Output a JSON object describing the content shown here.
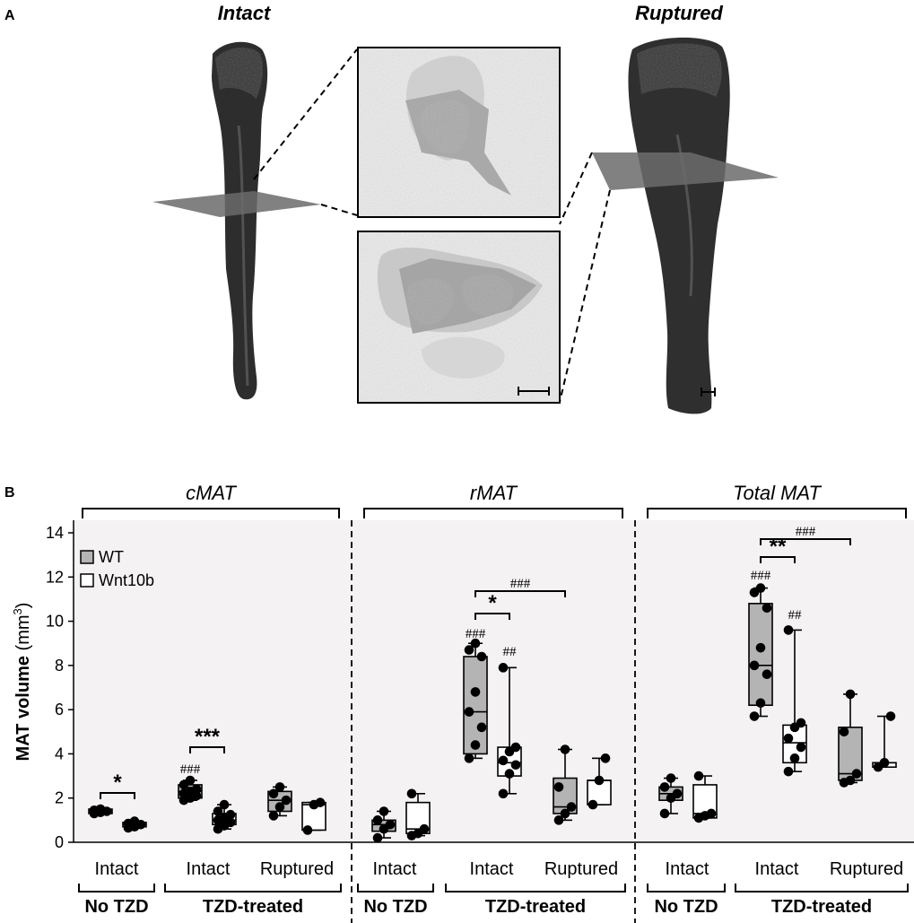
{
  "panel_a": {
    "letter": "A",
    "intact_title": "Intact",
    "ruptured_title": "Ruptured"
  },
  "panel_b": {
    "letter": "B",
    "y_label_bold": "MAT volume",
    "y_label_unit": "(mm",
    "y_label_sup": "3",
    "y_label_close": ")",
    "legend": [
      {
        "label": "WT",
        "fill": "#b4b4b4"
      },
      {
        "label": "Wnt10b",
        "fill": "#ffffff"
      }
    ],
    "sections": [
      {
        "title": "cMAT",
        "cats": [
          "Intact",
          "Intact",
          "Ruptured"
        ],
        "groups": [
          "No TZD",
          "TZD-treated"
        ]
      },
      {
        "title": "rMAT",
        "cats": [
          "Intact",
          "Intact",
          "Ruptured"
        ],
        "groups": [
          "No TZD",
          "TZD-treated"
        ]
      },
      {
        "title": "Total MAT",
        "cats": [
          "Intact",
          "Intact",
          "Ruptured"
        ],
        "groups": [
          "No TZD",
          "TZD-treated"
        ]
      }
    ]
  },
  "chart_data": {
    "type": "box",
    "ylabel": "MAT volume (mm3)",
    "ylim": [
      0,
      14
    ],
    "yticks": [
      0,
      2,
      4,
      6,
      8,
      10,
      12,
      14
    ],
    "series_names": [
      "WT",
      "Wnt10b"
    ],
    "panels": [
      {
        "title": "cMAT",
        "boxes": [
          {
            "cond": "No TZD Intact",
            "series": "WT",
            "min": 1.3,
            "q1": 1.3,
            "median": 1.4,
            "q3": 1.5,
            "max": 1.5,
            "points": [
              1.3,
              1.35,
              1.4,
              1.45,
              1.5
            ]
          },
          {
            "cond": "No TZD Intact",
            "series": "Wnt10b",
            "min": 0.65,
            "q1": 0.7,
            "median": 0.8,
            "q3": 0.9,
            "max": 0.95,
            "points": [
              0.65,
              0.7,
              0.8,
              0.85,
              0.95
            ]
          },
          {
            "cond": "TZD Intact",
            "series": "WT",
            "min": 1.9,
            "q1": 2.0,
            "median": 2.3,
            "q3": 2.6,
            "max": 2.8,
            "points": [
              1.9,
              2.0,
              2.1,
              2.2,
              2.3,
              2.4,
              2.6,
              2.8
            ]
          },
          {
            "cond": "TZD Intact",
            "series": "Wnt10b",
            "min": 0.6,
            "q1": 0.8,
            "median": 1.0,
            "q3": 1.3,
            "max": 1.7,
            "points": [
              0.6,
              0.75,
              0.9,
              1.0,
              1.1,
              1.25,
              1.4,
              1.7
            ]
          },
          {
            "cond": "TZD Ruptured",
            "series": "WT",
            "min": 1.2,
            "q1": 1.4,
            "median": 1.9,
            "q3": 2.3,
            "max": 2.5,
            "points": [
              1.2,
              1.6,
              1.9,
              2.2,
              2.5
            ]
          },
          {
            "cond": "TZD Ruptured",
            "series": "Wnt10b",
            "min": 0.55,
            "q1": 0.55,
            "median": 1.7,
            "q3": 1.8,
            "max": 1.8,
            "points": [
              0.55,
              1.7,
              1.8
            ]
          }
        ],
        "annotations": [
          {
            "text": "*",
            "compare": [
              "No TZD Intact WT",
              "No TZD Intact Wnt10b"
            ]
          },
          {
            "text": "***",
            "compare": [
              "TZD Intact WT",
              "TZD Intact Wnt10b"
            ]
          },
          {
            "text": "###",
            "on": "TZD Intact WT"
          }
        ]
      },
      {
        "title": "rMAT",
        "boxes": [
          {
            "cond": "No TZD Intact",
            "series": "WT",
            "min": 0.2,
            "q1": 0.5,
            "median": 0.8,
            "q3": 1.0,
            "max": 1.4,
            "points": [
              0.2,
              0.6,
              0.8,
              1.0,
              1.4
            ]
          },
          {
            "cond": "No TZD Intact",
            "series": "Wnt10b",
            "min": 0.3,
            "q1": 0.4,
            "median": 0.6,
            "q3": 1.8,
            "max": 2.2,
            "points": [
              0.3,
              0.4,
              0.6,
              2.2
            ]
          },
          {
            "cond": "TZD Intact",
            "series": "WT",
            "min": 3.8,
            "q1": 4.0,
            "median": 5.9,
            "q3": 8.4,
            "max": 9.0,
            "points": [
              3.8,
              4.4,
              5.2,
              5.9,
              6.8,
              8.4,
              8.7,
              9.0
            ]
          },
          {
            "cond": "TZD Intact",
            "series": "Wnt10b",
            "min": 2.2,
            "q1": 3.0,
            "median": 3.6,
            "q3": 4.3,
            "max": 7.9,
            "points": [
              2.2,
              3.1,
              3.5,
              3.7,
              4.1,
              4.3,
              7.9
            ]
          },
          {
            "cond": "TZD Ruptured",
            "series": "WT",
            "min": 1.0,
            "q1": 1.3,
            "median": 1.6,
            "q3": 2.9,
            "max": 4.2,
            "points": [
              1.0,
              1.3,
              1.6,
              2.5,
              4.2
            ]
          },
          {
            "cond": "TZD Ruptured",
            "series": "Wnt10b",
            "min": 1.7,
            "q1": 1.7,
            "median": 2.8,
            "q3": 2.8,
            "max": 3.8,
            "points": [
              1.7,
              2.8,
              3.8
            ]
          }
        ],
        "annotations": [
          {
            "text": "*",
            "compare": [
              "TZD Intact WT",
              "TZD Intact Wnt10b"
            ]
          },
          {
            "text": "###",
            "compare": [
              "TZD Intact WT",
              "TZD Ruptured WT"
            ]
          },
          {
            "text": "###",
            "on": "TZD Intact WT"
          },
          {
            "text": "##",
            "on": "TZD Intact Wnt10b"
          }
        ]
      },
      {
        "title": "Total MAT",
        "boxes": [
          {
            "cond": "No TZD Intact",
            "series": "WT",
            "min": 1.3,
            "q1": 1.9,
            "median": 2.2,
            "q3": 2.5,
            "max": 2.9,
            "points": [
              1.3,
              2.0,
              2.2,
              2.5,
              2.9
            ]
          },
          {
            "cond": "No TZD Intact",
            "series": "Wnt10b",
            "min": 1.1,
            "q1": 1.1,
            "median": 1.3,
            "q3": 2.6,
            "max": 3.0,
            "points": [
              1.1,
              1.2,
              1.3,
              3.0
            ]
          },
          {
            "cond": "TZD Intact",
            "series": "WT",
            "min": 5.7,
            "q1": 6.2,
            "median": 8.0,
            "q3": 10.8,
            "max": 11.5,
            "points": [
              5.7,
              6.3,
              7.6,
              8.0,
              8.8,
              10.6,
              11.3,
              11.5
            ]
          },
          {
            "cond": "TZD Intact",
            "series": "Wnt10b",
            "min": 3.2,
            "q1": 3.6,
            "median": 4.5,
            "q3": 5.3,
            "max": 9.6,
            "points": [
              3.2,
              3.8,
              4.3,
              4.7,
              5.2,
              5.4,
              9.6
            ]
          },
          {
            "cond": "TZD Ruptured",
            "series": "WT",
            "min": 2.7,
            "q1": 2.8,
            "median": 3.1,
            "q3": 5.2,
            "max": 6.7,
            "points": [
              2.7,
              2.8,
              3.1,
              5.0,
              6.7
            ]
          },
          {
            "cond": "TZD Ruptured",
            "series": "Wnt10b",
            "min": 3.4,
            "q1": 3.4,
            "median": 3.6,
            "q3": 3.6,
            "max": 5.7,
            "points": [
              3.4,
              3.6,
              5.7
            ]
          }
        ],
        "annotations": [
          {
            "text": "**",
            "compare": [
              "TZD Intact WT",
              "TZD Intact Wnt10b"
            ]
          },
          {
            "text": "###",
            "compare": [
              "TZD Intact WT",
              "TZD Ruptured WT"
            ]
          },
          {
            "text": "###",
            "on": "TZD Intact WT"
          },
          {
            "text": "##",
            "on": "TZD Intact Wnt10b"
          }
        ]
      }
    ]
  }
}
